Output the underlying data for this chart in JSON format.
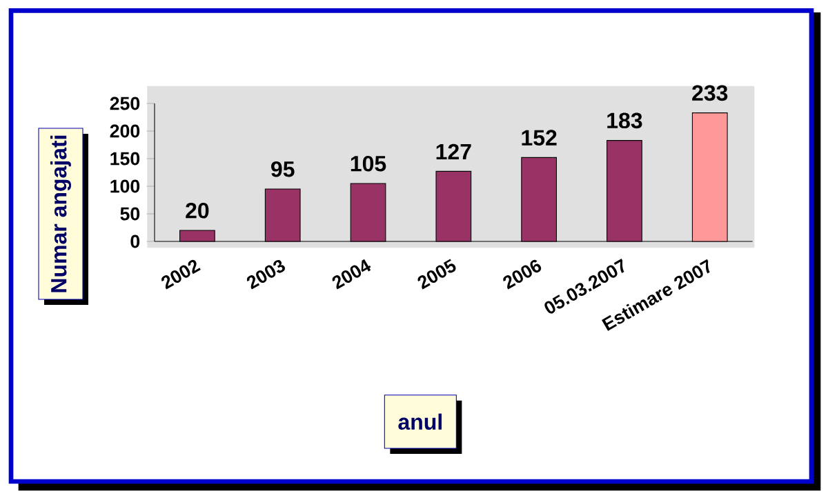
{
  "chart_data": {
    "type": "bar",
    "categories": [
      "2002",
      "2003",
      "2004",
      "2005",
      "2006",
      "05.03.2007",
      "Estimare 2007"
    ],
    "values": [
      20,
      95,
      105,
      127,
      152,
      183,
      233
    ],
    "colors": [
      "#993366",
      "#993366",
      "#993366",
      "#993366",
      "#993366",
      "#993366",
      "#ff9999"
    ],
    "ylabel": "Numar angajati",
    "xlabel": "anul",
    "ylim": [
      0,
      250
    ],
    "yticks": [
      0,
      50,
      100,
      150,
      200,
      250
    ],
    "data_labels": true
  }
}
